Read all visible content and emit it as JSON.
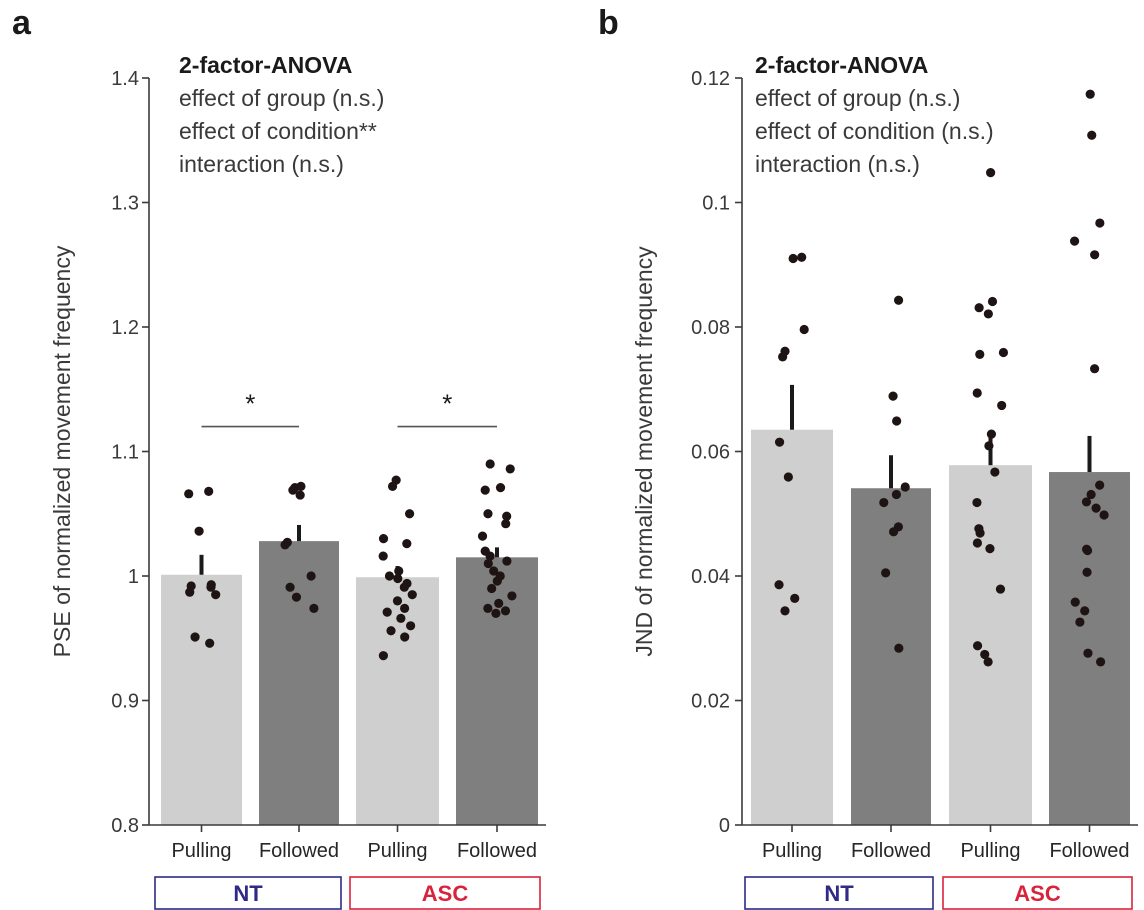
{
  "figure": {
    "colors": {
      "light_bar": "#cfcfcf",
      "dark_bar": "#7f7f7f",
      "dot": "#1e1414",
      "axis": "#3a3a3a",
      "nt": "#2e2a86",
      "asc": "#d8243b"
    }
  },
  "chart_data": [
    {
      "panel_label": "a",
      "type": "bar",
      "ylabel": "PSE of normalized movement frequency",
      "ylim": [
        0.8,
        1.4
      ],
      "yticks": [
        {
          "value": 0.8,
          "label": "0.8"
        },
        {
          "value": 0.9,
          "label": "0.9"
        },
        {
          "value": 1.0,
          "label": "1"
        },
        {
          "value": 1.1,
          "label": "1.1"
        },
        {
          "value": 1.2,
          "label": "1.2"
        },
        {
          "value": 1.3,
          "label": "1.3"
        },
        {
          "value": 1.4,
          "label": "1.4"
        }
      ],
      "annotation": {
        "title": "2-factor-ANOVA",
        "lines": [
          "effect of group (n.s.)",
          "effect of condition**",
          "interaction (n.s.)"
        ]
      },
      "groups": [
        {
          "name": "NT",
          "color_key": "nt"
        },
        {
          "name": "ASC",
          "color_key": "asc"
        }
      ],
      "bars": [
        {
          "label": "Pulling",
          "group": "NT",
          "shade": "light",
          "value": 1.001,
          "sem": 0.016,
          "points": [
            1.068,
            1.066,
            1.036,
            0.993,
            0.992,
            0.991,
            0.987,
            0.985,
            0.951,
            0.946
          ]
        },
        {
          "label": "Followed",
          "group": "NT",
          "shade": "dark",
          "value": 1.028,
          "sem": 0.013,
          "points": [
            1.072,
            1.071,
            1.069,
            1.065,
            1.027,
            1.025,
            1.0,
            0.991,
            0.983,
            0.974
          ]
        },
        {
          "label": "Pulling",
          "group": "ASC",
          "shade": "light",
          "value": 0.999,
          "sem": 0.009,
          "points": [
            1.077,
            1.072,
            1.05,
            1.03,
            1.026,
            1.016,
            1.004,
            1.0,
            0.998,
            0.994,
            0.991,
            0.985,
            0.98,
            0.974,
            0.971,
            0.966,
            0.96,
            0.956,
            0.951,
            0.936
          ]
        },
        {
          "label": "Followed",
          "group": "ASC",
          "shade": "dark",
          "value": 1.015,
          "sem": 0.008,
          "points": [
            1.09,
            1.086,
            1.071,
            1.069,
            1.05,
            1.048,
            1.042,
            1.032,
            1.02,
            1.016,
            1.012,
            1.01,
            1.004,
            1.0,
            0.996,
            0.99,
            0.984,
            0.978,
            0.974,
            0.972,
            0.97
          ]
        }
      ],
      "significance": [
        {
          "bars": [
            0,
            1
          ],
          "level": 1.12,
          "label": "*"
        },
        {
          "bars": [
            2,
            3
          ],
          "level": 1.12,
          "label": "*"
        }
      ]
    },
    {
      "panel_label": "b",
      "type": "bar",
      "ylabel": "JND of normalized movement frequency",
      "ylim": [
        0,
        0.12
      ],
      "yticks": [
        {
          "value": 0,
          "label": "0"
        },
        {
          "value": 0.02,
          "label": "0.02"
        },
        {
          "value": 0.04,
          "label": "0.04"
        },
        {
          "value": 0.06,
          "label": "0.06"
        },
        {
          "value": 0.08,
          "label": "0.08"
        },
        {
          "value": 0.1,
          "label": "0.1"
        },
        {
          "value": 0.12,
          "label": "0.12"
        }
      ],
      "annotation": {
        "title": "2-factor-ANOVA",
        "lines": [
          "effect of group (n.s.)",
          "effect of condition (n.s.)",
          "interaction (n.s.)"
        ]
      },
      "groups": [
        {
          "name": "NT",
          "color_key": "nt"
        },
        {
          "name": "ASC",
          "color_key": "asc"
        }
      ],
      "bars": [
        {
          "label": "Pulling",
          "group": "NT",
          "shade": "light",
          "value": 0.0635,
          "sem": 0.0072,
          "points": [
            0.0912,
            0.091,
            0.0796,
            0.0761,
            0.0752,
            0.0615,
            0.0559,
            0.0386,
            0.0364,
            0.0344
          ]
        },
        {
          "label": "Followed",
          "group": "NT",
          "shade": "dark",
          "value": 0.0541,
          "sem": 0.0053,
          "points": [
            0.0843,
            0.0689,
            0.0649,
            0.0543,
            0.0531,
            0.0518,
            0.0479,
            0.0471,
            0.0405,
            0.0284
          ]
        },
        {
          "label": "Pulling",
          "group": "ASC",
          "shade": "light",
          "value": 0.0578,
          "sem": 0.0048,
          "points": [
            0.1048,
            0.0841,
            0.0831,
            0.0821,
            0.0759,
            0.0756,
            0.0694,
            0.0674,
            0.0628,
            0.0609,
            0.0567,
            0.0518,
            0.0476,
            0.0469,
            0.0453,
            0.0444,
            0.0379,
            0.0288,
            0.0274,
            0.0262
          ]
        },
        {
          "label": "Followed",
          "group": "ASC",
          "shade": "dark",
          "value": 0.0567,
          "sem": 0.0058,
          "points": [
            0.1174,
            0.1108,
            0.0967,
            0.0938,
            0.0916,
            0.0733,
            0.0546,
            0.0531,
            0.0519,
            0.0509,
            0.0498,
            0.0443,
            0.0441,
            0.0406,
            0.0358,
            0.0344,
            0.0326,
            0.0276,
            0.0262
          ]
        }
      ]
    }
  ]
}
